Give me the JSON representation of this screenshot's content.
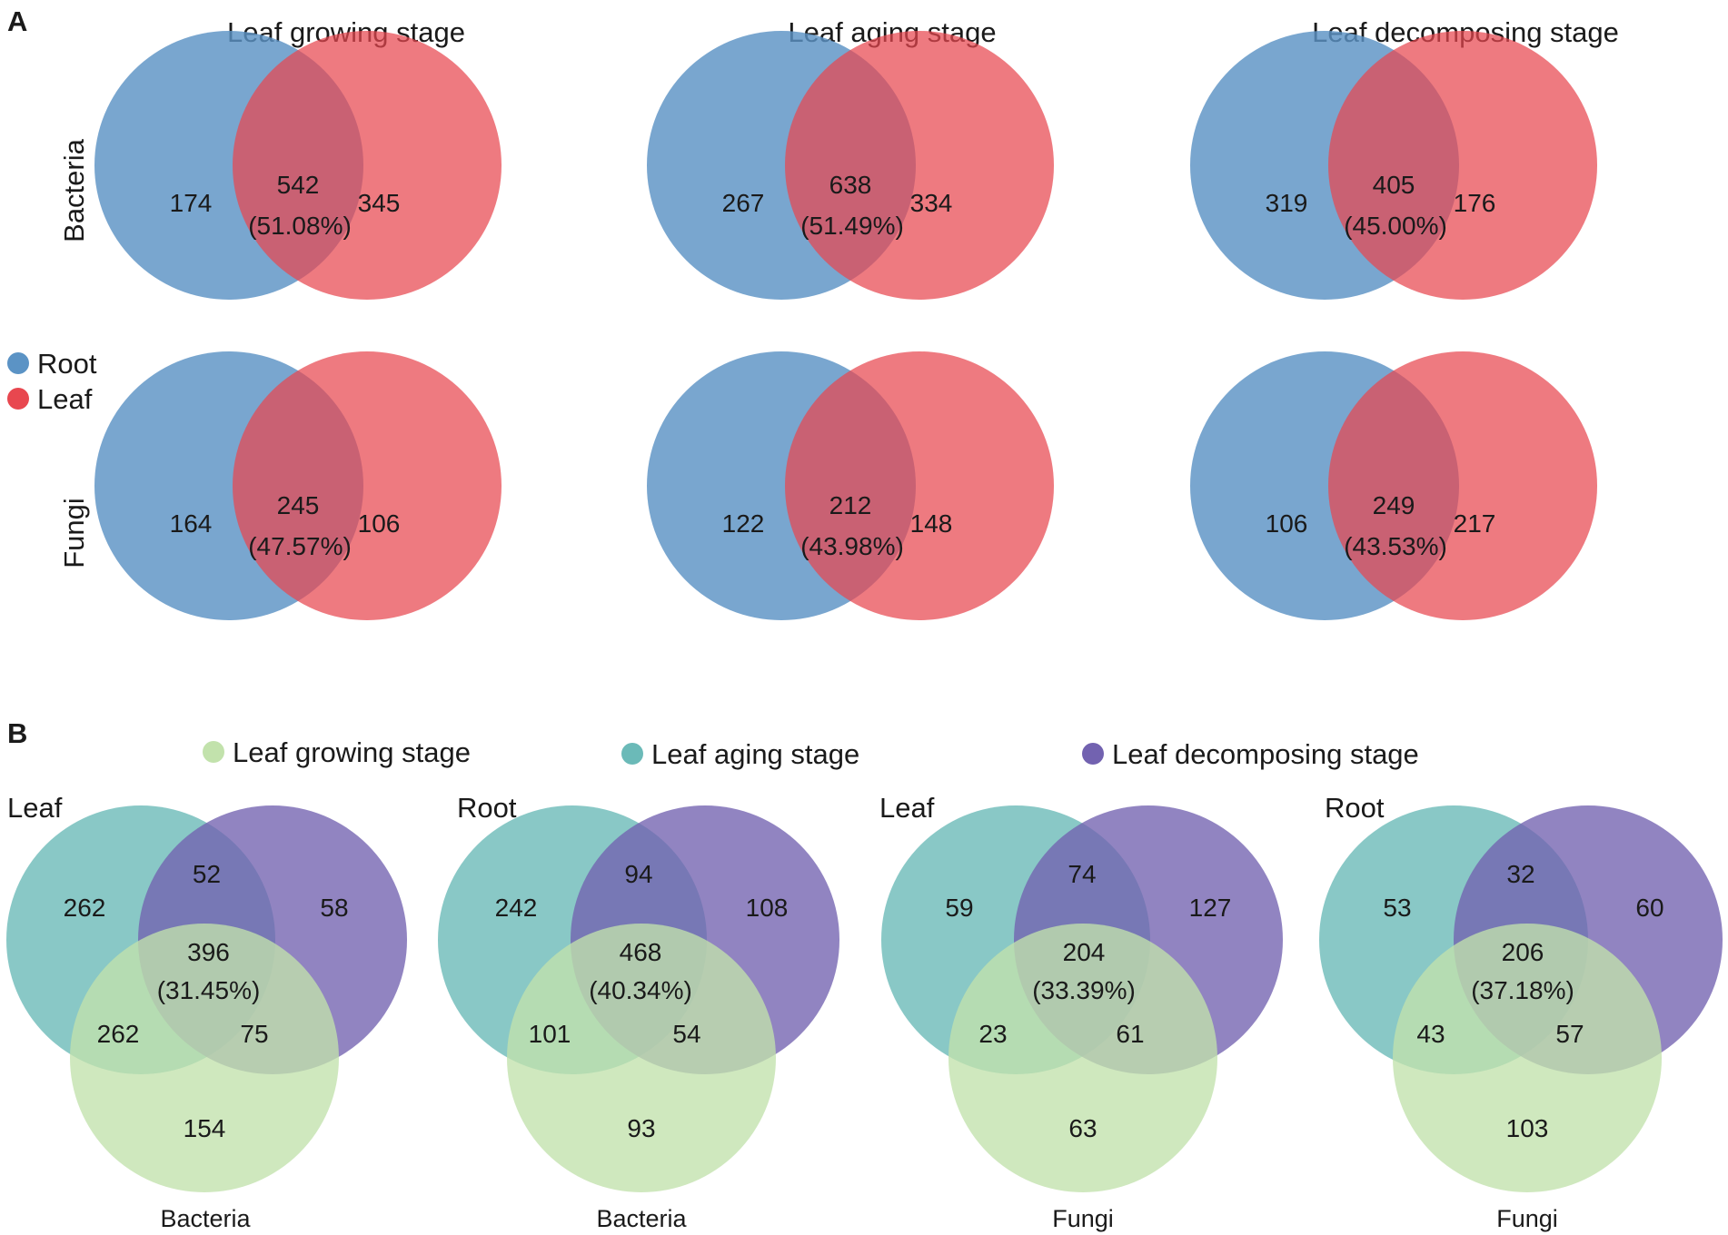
{
  "colors": {
    "root": "#5b93c5",
    "leaf": "#e8474f",
    "growing": "#c2e2ac",
    "aging": "#6bbab8",
    "decomposing": "#7262b0"
  },
  "panel_a": {
    "letter": "A",
    "columns": [
      "Leaf growing stage",
      "Leaf aging stage",
      "Leaf decomposing stage"
    ],
    "rows": [
      "Bacteria",
      "Fungi"
    ],
    "legend": [
      {
        "label": "Root",
        "color": "#5b93c5"
      },
      {
        "label": "Leaf",
        "color": "#e8474f"
      }
    ]
  },
  "panel_b": {
    "letter": "B",
    "legend": [
      {
        "label": "Leaf growing stage",
        "color": "#c2e2ac"
      },
      {
        "label": "Leaf aging stage",
        "color": "#6bbab8"
      },
      {
        "label": "Leaf decomposing stage",
        "color": "#7262b0"
      }
    ]
  },
  "chart_data": [
    {
      "type": "venn2",
      "panel": "A",
      "row": "Bacteria",
      "column": "Leaf growing stage",
      "sets": [
        "Root",
        "Leaf"
      ],
      "only_a": 174,
      "shared": 542,
      "shared_pct": "(51.08%)",
      "only_b": 345
    },
    {
      "type": "venn2",
      "panel": "A",
      "row": "Bacteria",
      "column": "Leaf aging stage",
      "sets": [
        "Root",
        "Leaf"
      ],
      "only_a": 267,
      "shared": 638,
      "shared_pct": "(51.49%)",
      "only_b": 334
    },
    {
      "type": "venn2",
      "panel": "A",
      "row": "Bacteria",
      "column": "Leaf decomposing stage",
      "sets": [
        "Root",
        "Leaf"
      ],
      "only_a": 319,
      "shared": 405,
      "shared_pct": "(45.00%)",
      "only_b": 176
    },
    {
      "type": "venn2",
      "panel": "A",
      "row": "Fungi",
      "column": "Leaf growing stage",
      "sets": [
        "Root",
        "Leaf"
      ],
      "only_a": 164,
      "shared": 245,
      "shared_pct": "(47.57%)",
      "only_b": 106
    },
    {
      "type": "venn2",
      "panel": "A",
      "row": "Fungi",
      "column": "Leaf aging stage",
      "sets": [
        "Root",
        "Leaf"
      ],
      "only_a": 122,
      "shared": 212,
      "shared_pct": "(43.98%)",
      "only_b": 148
    },
    {
      "type": "venn2",
      "panel": "A",
      "row": "Fungi",
      "column": "Leaf decomposing stage",
      "sets": [
        "Root",
        "Leaf"
      ],
      "only_a": 106,
      "shared": 249,
      "shared_pct": "(43.53%)",
      "only_b": 217
    },
    {
      "type": "venn3",
      "panel": "B",
      "title": "Leaf",
      "subtitle": "Bacteria",
      "sets": [
        "Leaf aging stage",
        "Leaf decomposing stage",
        "Leaf growing stage"
      ],
      "aging_only": 262,
      "decomposing_only": 58,
      "growing_only": 154,
      "aging_decomposing": 52,
      "aging_growing": 262,
      "decomposing_growing": 75,
      "all": 396,
      "all_pct": "(31.45%)"
    },
    {
      "type": "venn3",
      "panel": "B",
      "title": "Root",
      "subtitle": "Bacteria",
      "sets": [
        "Leaf aging stage",
        "Leaf decomposing stage",
        "Leaf growing stage"
      ],
      "aging_only": 242,
      "decomposing_only": 108,
      "growing_only": 93,
      "aging_decomposing": 94,
      "aging_growing": 101,
      "decomposing_growing": 54,
      "all": 468,
      "all_pct": "(40.34%)"
    },
    {
      "type": "venn3",
      "panel": "B",
      "title": "Leaf",
      "subtitle": "Fungi",
      "sets": [
        "Leaf aging stage",
        "Leaf decomposing stage",
        "Leaf growing stage"
      ],
      "aging_only": 59,
      "decomposing_only": 127,
      "growing_only": 63,
      "aging_decomposing": 74,
      "aging_growing": 23,
      "decomposing_growing": 61,
      "all": 204,
      "all_pct": "(33.39%)"
    },
    {
      "type": "venn3",
      "panel": "B",
      "title": "Root",
      "subtitle": "Fungi",
      "sets": [
        "Leaf aging stage",
        "Leaf decomposing stage",
        "Leaf growing stage"
      ],
      "aging_only": 53,
      "decomposing_only": 60,
      "growing_only": 103,
      "aging_decomposing": 32,
      "aging_growing": 43,
      "decomposing_growing": 57,
      "all": 206,
      "all_pct": "(37.18%)"
    }
  ]
}
